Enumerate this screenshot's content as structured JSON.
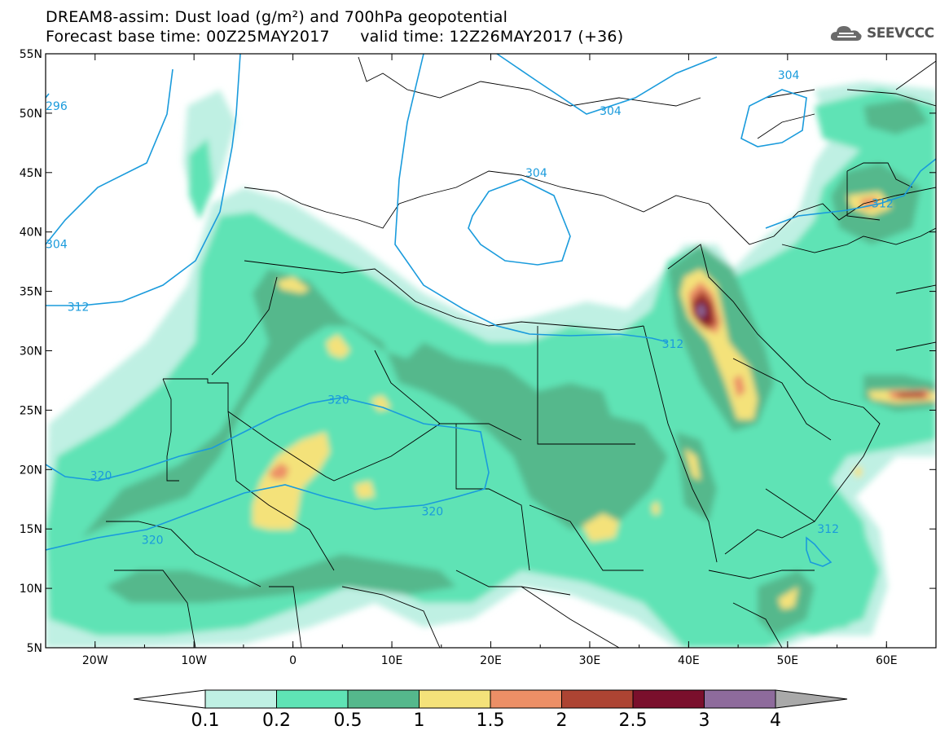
{
  "title": {
    "line1": "DREAM8-assim: Dust load (g/m²) and 700hPa geopotential",
    "line2_left": "Forecast base time: 00Z25MAY2017",
    "line2_right": "valid time: 12Z26MAY2017 (+36)"
  },
  "logo": {
    "text": "SEEVCCC",
    "icon": "cloud-logo-icon"
  },
  "map": {
    "lon_range": [
      -25,
      65
    ],
    "lat_range": [
      5,
      55
    ],
    "lon_ticks": [
      "20W",
      "10W",
      "0",
      "10E",
      "20E",
      "30E",
      "40E",
      "50E",
      "60E"
    ],
    "lon_values": [
      -20,
      -10,
      0,
      10,
      20,
      30,
      40,
      50,
      60
    ],
    "lat_ticks": [
      "55N",
      "50N",
      "45N",
      "40N",
      "35N",
      "30N",
      "25N",
      "20N",
      "15N",
      "10N",
      "5N"
    ],
    "lat_values": [
      55,
      50,
      45,
      40,
      35,
      30,
      25,
      20,
      15,
      10,
      5
    ]
  },
  "contour_labels": [
    {
      "text": "296",
      "lon": -25.0,
      "lat": 50.6
    },
    {
      "text": "304",
      "lon": -25.0,
      "lat": 39.0
    },
    {
      "text": "312",
      "lon": -22.8,
      "lat": 33.7
    },
    {
      "text": "304",
      "lon": 31.0,
      "lat": 50.2
    },
    {
      "text": "304",
      "lon": 49.0,
      "lat": 53.2
    },
    {
      "text": "304",
      "lon": 23.5,
      "lat": 45.0
    },
    {
      "text": "312",
      "lon": 37.3,
      "lat": 30.6
    },
    {
      "text": "312",
      "lon": 58.5,
      "lat": 42.4
    },
    {
      "text": "320",
      "lon": 3.5,
      "lat": 25.9
    },
    {
      "text": "320",
      "lon": -20.5,
      "lat": 19.5
    },
    {
      "text": "320",
      "lon": 13.0,
      "lat": 16.5
    },
    {
      "text": "320",
      "lon": -15.3,
      "lat": 14.1
    },
    {
      "text": "312",
      "lon": 53.0,
      "lat": 15.0
    }
  ],
  "colorbar": {
    "labels": [
      "0.1",
      "0.2",
      "0.5",
      "1",
      "1.5",
      "2",
      "2.5",
      "3",
      "4"
    ],
    "colors": [
      "#bff0e3",
      "#5fe3b5",
      "#55b88c",
      "#f4e27a",
      "#ec8f66",
      "#ad4433",
      "#7a0f2c",
      "#8e6b9c"
    ],
    "under_color": "#ffffff",
    "over_color": "#a9a9a9"
  },
  "colors": {
    "contour": "#1a9bdc",
    "border": "#000000"
  }
}
